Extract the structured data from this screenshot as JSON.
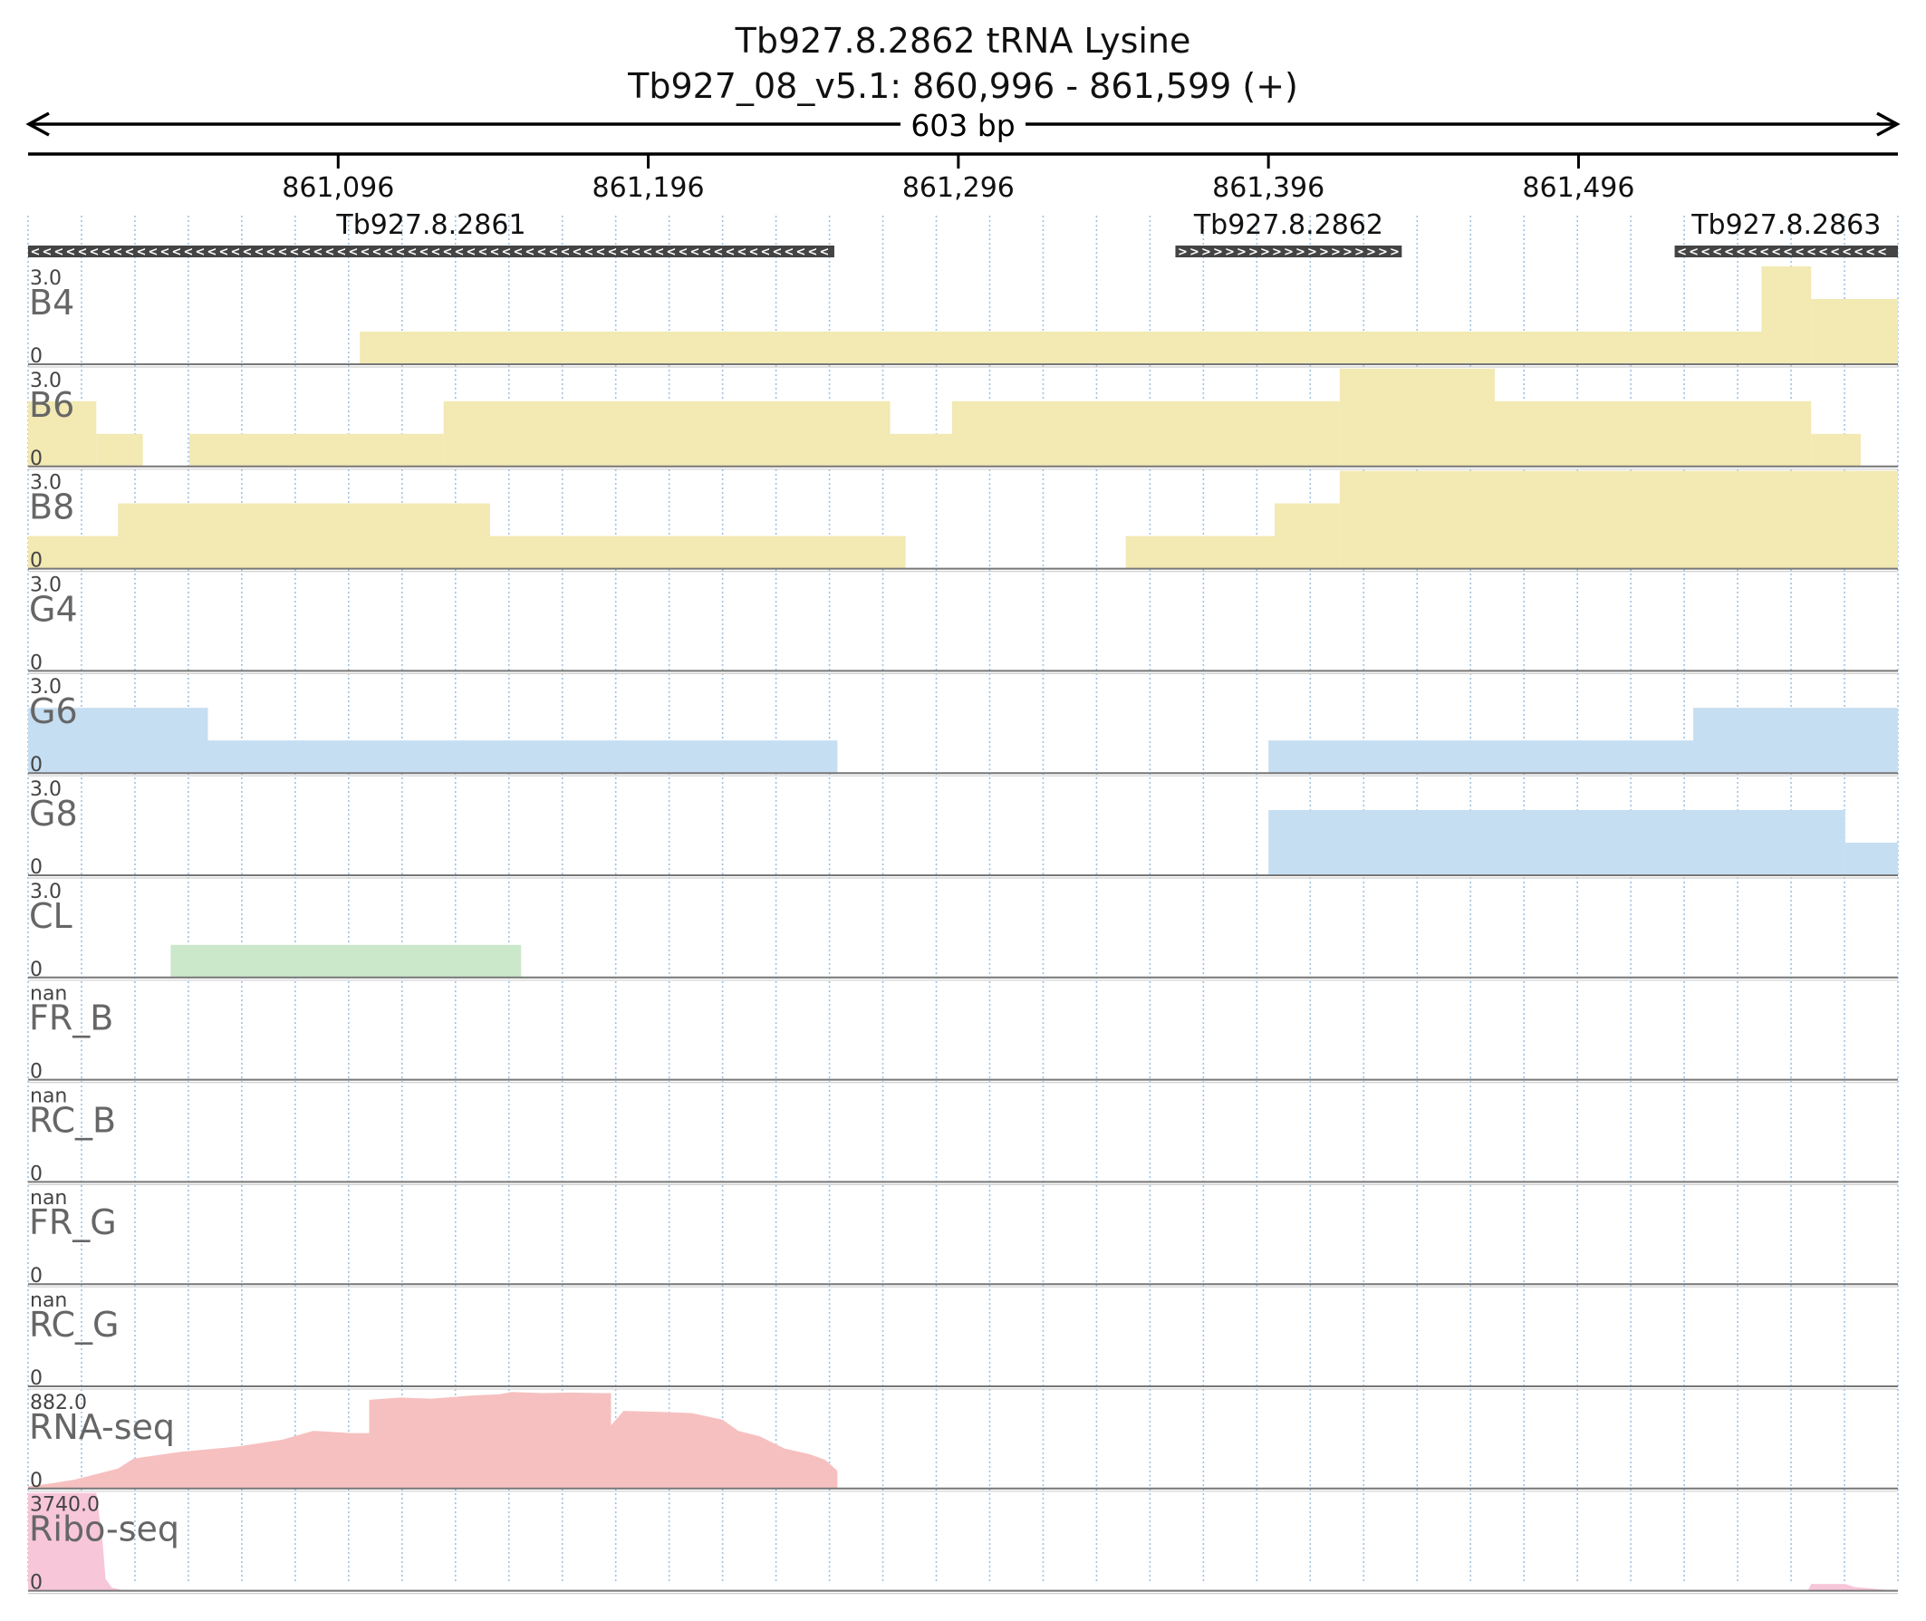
{
  "title": {
    "line1": "Tb927.8.2862  tRNA Lysine",
    "line2": "Tb927_08_v5.1: 860,996 - 861,599 (+)"
  },
  "span_label": "603 bp",
  "chart_data": {
    "type": "area",
    "region": {
      "start": 860996,
      "end": 861599
    },
    "ticks": [
      {
        "pos": 861096,
        "label": "861,096"
      },
      {
        "pos": 861196,
        "label": "861,196"
      },
      {
        "pos": 861296,
        "label": "861,296"
      },
      {
        "pos": 861396,
        "label": "861,396"
      },
      {
        "pos": 861496,
        "label": "861,496"
      }
    ],
    "genes": [
      {
        "name": "Tb927.8.2861",
        "start": 860996,
        "end": 861256,
        "strand": "-"
      },
      {
        "name": "Tb927.8.2862",
        "start": 861366,
        "end": 861439,
        "strand": "+"
      },
      {
        "name": "Tb927.8.2863",
        "start": 861527,
        "end": 861599,
        "strand": "-"
      }
    ],
    "tracks": [
      {
        "name": "B4",
        "max_label": "3.0",
        "min_label": "0",
        "max": 3,
        "color": "#f2e9b3",
        "segments": [
          [
            861103,
            861555,
            1
          ],
          [
            861555,
            861571,
            3
          ],
          [
            861571,
            861599,
            2
          ]
        ]
      },
      {
        "name": "B6",
        "max_label": "3.0",
        "min_label": "0",
        "max": 3,
        "color": "#f2e9b3",
        "segments": [
          [
            860996,
            861018,
            2
          ],
          [
            861018,
            861033,
            1
          ],
          [
            861048,
            861130,
            1
          ],
          [
            861130,
            861274,
            2
          ],
          [
            861274,
            861294,
            1
          ],
          [
            861294,
            861419,
            2
          ],
          [
            861419,
            861469,
            3
          ],
          [
            861469,
            861571,
            2
          ],
          [
            861571,
            861587,
            1
          ]
        ]
      },
      {
        "name": "B8",
        "max_label": "3.0",
        "min_label": "0",
        "max": 3,
        "color": "#f2e9b3",
        "segments": [
          [
            860996,
            861025,
            1
          ],
          [
            861025,
            861145,
            2
          ],
          [
            861145,
            861279,
            1
          ],
          [
            861350,
            861398,
            1
          ],
          [
            861398,
            861419,
            2
          ],
          [
            861419,
            861599,
            3
          ]
        ]
      },
      {
        "name": "G4",
        "max_label": "3.0",
        "min_label": "0",
        "max": 3,
        "color": "#c6def2",
        "segments": []
      },
      {
        "name": "G6",
        "max_label": "3.0",
        "min_label": "0",
        "max": 3,
        "color": "#c6def2",
        "segments": [
          [
            860996,
            861054,
            2
          ],
          [
            861054,
            861257,
            1
          ],
          [
            861396,
            861533,
            1
          ],
          [
            861533,
            861599,
            2
          ]
        ]
      },
      {
        "name": "G8",
        "max_label": "3.0",
        "min_label": "0",
        "max": 3,
        "color": "#c6def2",
        "segments": [
          [
            861396,
            861582,
            2
          ],
          [
            861582,
            861599,
            1
          ]
        ]
      },
      {
        "name": "CL",
        "max_label": "3.0",
        "min_label": "0",
        "max": 3,
        "color": "#cbe8cb",
        "segments": [
          [
            861042,
            861155,
            1
          ]
        ]
      },
      {
        "name": "FR_B",
        "max_label": "nan",
        "min_label": "0",
        "max": 3,
        "color": "#c6def2",
        "segments": []
      },
      {
        "name": "RC_B",
        "max_label": "nan",
        "min_label": "0",
        "max": 3,
        "color": "#c6def2",
        "segments": []
      },
      {
        "name": "FR_G",
        "max_label": "nan",
        "min_label": "0",
        "max": 3,
        "color": "#c6def2",
        "segments": []
      },
      {
        "name": "RC_G",
        "max_label": "nan",
        "min_label": "0",
        "max": 3,
        "color": "#c6def2",
        "segments": []
      },
      {
        "name": "RNA-seq",
        "max_label": "882.0",
        "min_label": "0",
        "max": 882,
        "color": "#f7c0c0",
        "profile": [
          [
            860996,
            20
          ],
          [
            861002,
            40
          ],
          [
            861011,
            80
          ],
          [
            861025,
            180
          ],
          [
            861030,
            270
          ],
          [
            861045,
            330
          ],
          [
            861064,
            380
          ],
          [
            861078,
            440
          ],
          [
            861088,
            520
          ],
          [
            861100,
            500
          ],
          [
            861106,
            500
          ],
          [
            861106,
            800
          ],
          [
            861116,
            820
          ],
          [
            861126,
            810
          ],
          [
            861140,
            840
          ],
          [
            861148,
            850
          ],
          [
            861152,
            870
          ],
          [
            861162,
            860
          ],
          [
            861171,
            865
          ],
          [
            861181,
            860
          ],
          [
            861184,
            860
          ],
          [
            861184,
            570
          ],
          [
            861188,
            700
          ],
          [
            861200,
            690
          ],
          [
            861210,
            680
          ],
          [
            861220,
            620
          ],
          [
            861225,
            520
          ],
          [
            861232,
            470
          ],
          [
            861240,
            360
          ],
          [
            861248,
            310
          ],
          [
            861253,
            260
          ],
          [
            861257,
            160
          ],
          [
            861257,
            0
          ]
        ]
      },
      {
        "name": "Ribo-seq",
        "max_label": "3740.0",
        "min_label": "0",
        "max": 3740,
        "color": "#f7c6d9",
        "profile": [
          [
            860996,
            3740
          ],
          [
            861018,
            3740
          ],
          [
            861020,
            1900
          ],
          [
            861021,
            450
          ],
          [
            861023,
            120
          ],
          [
            861026,
            40
          ],
          [
            861030,
            15
          ],
          [
            861570,
            15
          ],
          [
            861571,
            260
          ],
          [
            861582,
            260
          ],
          [
            861585,
            140
          ],
          [
            861595,
            40
          ],
          [
            861599,
            20
          ]
        ]
      }
    ]
  }
}
